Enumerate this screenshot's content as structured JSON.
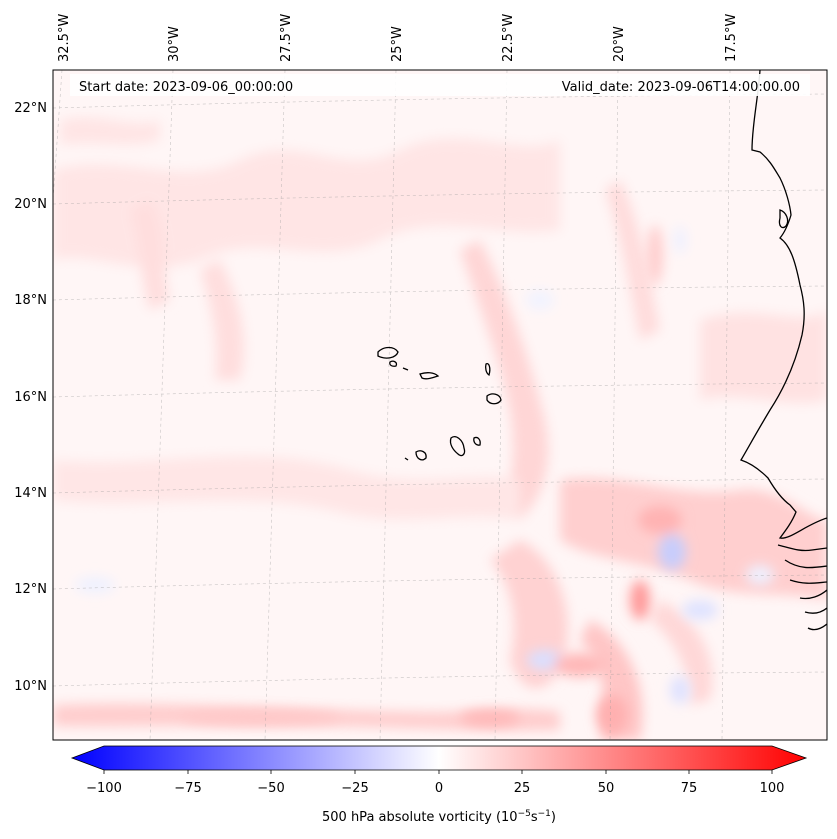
{
  "header": {
    "start_date": "Start date: 2023-09-06_00:00:00",
    "valid_date": "Valid_date: 2023-09-06T14:00:00.00"
  },
  "map": {
    "lon_labels": [
      "32.5°W",
      "30°W",
      "27.5°W",
      "25°W",
      "22.5°W",
      "20°W",
      "17.5°W"
    ],
    "lat_labels": [
      "22°N",
      "20°N",
      "18°N",
      "16°N",
      "14°N",
      "12°N",
      "10°N"
    ],
    "field": "500 hPa absolute vorticity"
  },
  "colorbar": {
    "label_prefix": "500 hPa absolute vorticity (10",
    "label_exp1": "−5",
    "label_mid": "s",
    "label_exp2": "−1",
    "label_suffix": ")",
    "ticks": [
      "−100",
      "−75",
      "−50",
      "−25",
      "0",
      "25",
      "50",
      "75",
      "100"
    ],
    "min_color": "#0000ff",
    "mid_color": "#ffffff",
    "max_color": "#ff0000"
  }
}
